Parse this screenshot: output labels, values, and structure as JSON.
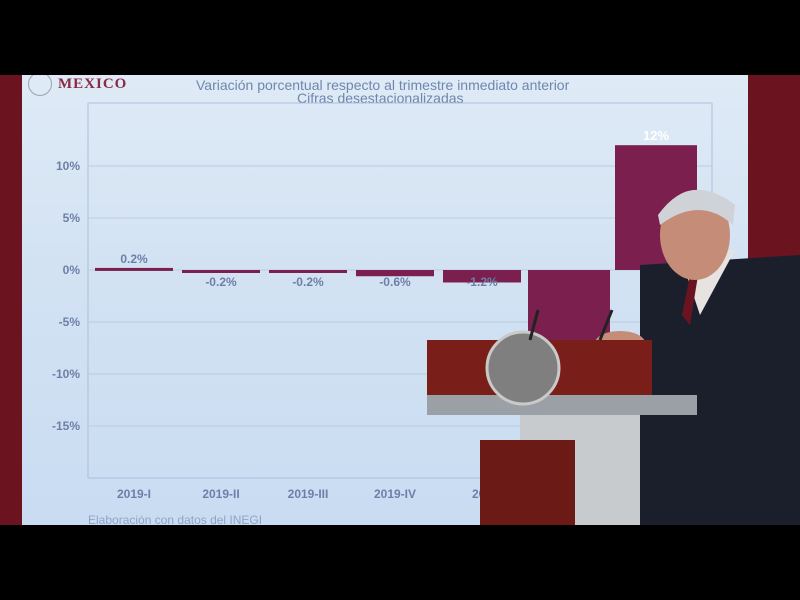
{
  "screen": {
    "logo_text": "MEXICO",
    "title_line1": "Variación porcentual respecto al trimestre inmediato anterior",
    "title_line2": "Cifras desestacionalizadas",
    "source": "Elaboración con datos del INEGI"
  },
  "chart_data": {
    "type": "bar",
    "title": "Variación porcentual respecto al trimestre inmediato anterior",
    "subtitle": "Cifras desestacionalizadas",
    "categories": [
      "2019-I",
      "2019-II",
      "2019-III",
      "2019-IV",
      "202",
      "",
      ""
    ],
    "values": [
      0.2,
      -0.2,
      -0.2,
      -0.6,
      -1.2,
      -17,
      12
    ],
    "data_labels": [
      "0.2%",
      "-0.2%",
      "-0.2%",
      "-0.6%",
      "-1.2%",
      "",
      "12%"
    ],
    "y_ticks": [
      "10%",
      "5%",
      "0%",
      "-5%",
      "-10%",
      "-15%"
    ],
    "y_tick_values": [
      10,
      5,
      0,
      -5,
      -10,
      -15
    ],
    "ylim": [
      -19,
      15
    ],
    "grid": true,
    "bar_color": "#7a1f4e"
  },
  "colors": {
    "screen_bg": "#d2e2f3",
    "frame": "#6b1420",
    "bar": "#7a1f4e",
    "text": "#6d7fa8"
  }
}
